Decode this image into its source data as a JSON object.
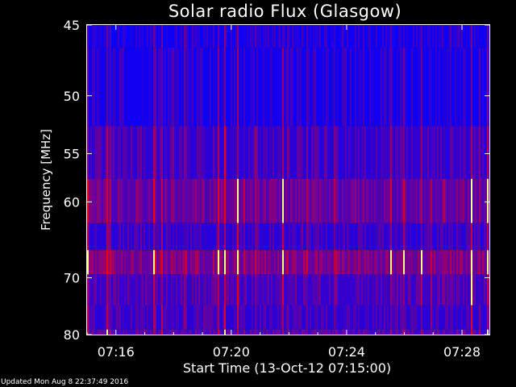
{
  "chart_data": {
    "type": "heatmap",
    "title": "Solar radio Flux (Glasgow)",
    "ylabel": "Frequency [MHz]",
    "xlabel": "Start Time (13-Oct-12 07:15:00)",
    "x_ticks": [
      "07:16",
      "07:20",
      "07:24",
      "07:28"
    ],
    "x_tick_minutes": [
      1,
      5,
      9,
      13
    ],
    "xlim_minutes": [
      0,
      13.95
    ],
    "y_ticks": [
      45,
      50,
      55,
      60,
      70,
      80
    ],
    "y_scale": "reciprocal",
    "ylim": [
      45,
      80
    ],
    "frequency_bands_mhz": [
      {
        "from": 45,
        "to": 46.5,
        "level": 0.1
      },
      {
        "from": 46.5,
        "to": 52.5,
        "level": 0.12
      },
      {
        "from": 52.5,
        "to": 57.5,
        "level": 0.3
      },
      {
        "from": 57.5,
        "to": 62.5,
        "level": 0.55
      },
      {
        "from": 62.5,
        "to": 66.0,
        "level": 0.28
      },
      {
        "from": 66.0,
        "to": 69.5,
        "level": 0.7
      },
      {
        "from": 69.5,
        "to": 74.5,
        "level": 0.38
      },
      {
        "from": 74.5,
        "to": 79.0,
        "level": 0.3
      },
      {
        "from": 79.0,
        "to": 80,
        "level": 0.45
      }
    ],
    "colors": {
      "low": "#0000ff",
      "mid": "#7f0060",
      "high": "#ff0000",
      "peak": "#ffff80",
      "axes": "#ffffff",
      "background": "#000000"
    },
    "grid": false
  },
  "footer": {
    "updated": "Updated Mon Aug  8 22:37:49 2016"
  }
}
